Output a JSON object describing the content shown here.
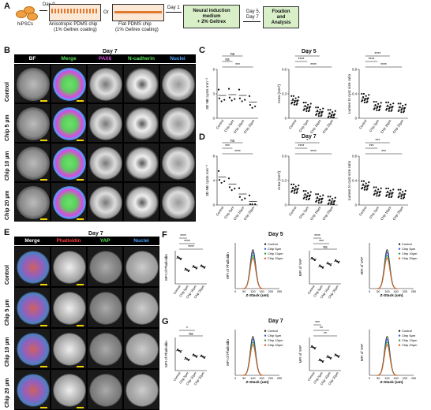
{
  "panel_labels": {
    "a": "A",
    "b": "B",
    "c": "C",
    "d": "D",
    "e": "E",
    "f": "F",
    "g": "G"
  },
  "workflow": {
    "cells": "hiPSCs",
    "day0": "Day 0",
    "chip1": "Anisotropic PDMS chip",
    "chip1_sub": "(1% Geltrex coating)",
    "or": "Or",
    "chip2": "Flat PDMS chip",
    "chip2_sub": "(1% Geltrex coating)",
    "day1": "Day 1",
    "medium1": "Neural induction",
    "medium2": "medium",
    "medium3": "+ 2% Geltrex",
    "day5": "Day 5,",
    "day7": "Day 7",
    "fix1": "Fixation",
    "fix2": "and",
    "fix3": "Analysis"
  },
  "panel_b": {
    "title": "Day 7",
    "channels": [
      "BF",
      "Merge",
      "PAX6",
      "N-cadherin",
      "Nuclei"
    ],
    "rows": [
      "Control",
      "Chip 5 µm",
      "Chip 10 µm",
      "Chip 20 µm"
    ]
  },
  "panel_e": {
    "title": "Day 7",
    "channels": [
      "Merge",
      "Phalloidin",
      "YAP",
      "Nuclei"
    ],
    "rows": [
      "Control",
      "Chip 5 µm",
      "Chip 10 µm",
      "Chip 20 µm"
    ]
  },
  "panel_c": {
    "title": "Day 5",
    "ylabels": [
      "3D NE cysts mm⁻²",
      "Area (mm²)",
      "Lumen to cyst size ratio"
    ],
    "sig": [
      "***",
      "ns",
      "ns",
      "****",
      "****",
      "*",
      "****",
      "****",
      "****"
    ]
  },
  "panel_d": {
    "title": "Day 7",
    "ylabels": [
      "3D NE cysts mm⁻²",
      "Area (mm²)",
      "Lumen to cyst size ratio"
    ],
    "sig": [
      "****",
      "***",
      "ns",
      "****",
      "****",
      "*",
      "***",
      "***",
      "***"
    ]
  },
  "panel_f": {
    "title": "Day 5",
    "ylabels": [
      "MFI of Phalloidin",
      "MFI of Phalloidin",
      "MFI of YAP",
      "MFI of YAP"
    ],
    "sig": [
      "****",
      "****",
      "****",
      "ns",
      "***",
      "****"
    ]
  },
  "panel_g": {
    "title": "Day 7",
    "ylabels": [
      "MFI of Phalloidin",
      "MFI of Phalloidin",
      "MFI of YAP",
      "MFI of YAP"
    ],
    "sig": [
      "ns",
      "*",
      "**",
      "**",
      "***"
    ]
  },
  "groups": [
    "Control",
    "Chip 5µm",
    "Chip 10µm",
    "Chip 20µm"
  ],
  "legend": [
    "Control",
    "Chip 5µm",
    "Chip 10µm",
    "Chip 20µm"
  ],
  "zstack_label": "Z-Stack (um)",
  "colors": {
    "control": "#222222",
    "chip5": "#3b5bdb",
    "chip10": "#2f9e44",
    "chip20": "#e8590c",
    "pax6": "#d94ad9",
    "ncad": "#59e259",
    "nuclei": "#4da3ff",
    "phal": "#ff4040",
    "yap": "#59e259",
    "scale": "#f2d200"
  },
  "chart_data": [
    {
      "type": "scatter",
      "title": "Day 5",
      "ylabel": "3D NE cysts mm⁻²",
      "categories": [
        "Control",
        "Chip 5µm",
        "Chip 10µm",
        "Chip 20µm"
      ],
      "ylim": [
        0,
        6
      ],
      "values": [
        2.8,
        2.9,
        2.8,
        2.0
      ]
    },
    {
      "type": "scatter",
      "title": "Day 5",
      "ylabel": "Area (mm²)",
      "categories": [
        "Control",
        "Chip 5µm",
        "Chip 10µm",
        "Chip 20µm"
      ],
      "ylim": [
        0,
        0.6
      ],
      "values": [
        0.22,
        0.14,
        0.08,
        0.05
      ]
    },
    {
      "type": "scatter",
      "title": "Day 5",
      "ylabel": "Lumen to cyst size ratio",
      "categories": [
        "Control",
        "Chip 5µm",
        "Chip 10µm",
        "Chip 20µm"
      ],
      "ylim": [
        0,
        0.8
      ],
      "values": [
        0.33,
        0.2,
        0.19,
        0.17
      ]
    },
    {
      "type": "scatter",
      "title": "Day 7",
      "ylabel": "3D NE cysts mm⁻²",
      "categories": [
        "Control",
        "Chip 5µm",
        "Chip 10µm",
        "Chip 20µm"
      ],
      "ylim": [
        0,
        8
      ],
      "values": [
        4.6,
        3.4,
        1.8,
        0.6
      ]
    },
    {
      "type": "scatter",
      "title": "Day 7",
      "ylabel": "Area (mm²)",
      "categories": [
        "Control",
        "Chip 5µm",
        "Chip 10µm",
        "Chip 20µm"
      ],
      "ylim": [
        0,
        0.6
      ],
      "values": [
        0.2,
        0.12,
        0.08,
        0.05
      ]
    },
    {
      "type": "scatter",
      "title": "Day 7",
      "ylabel": "Lumen to cyst size ratio",
      "categories": [
        "Control",
        "Chip 5µm",
        "Chip 10µm",
        "Chip 20µm"
      ],
      "ylim": [
        0,
        0.8
      ],
      "values": [
        0.32,
        0.22,
        0.2,
        0.18
      ]
    }
  ]
}
